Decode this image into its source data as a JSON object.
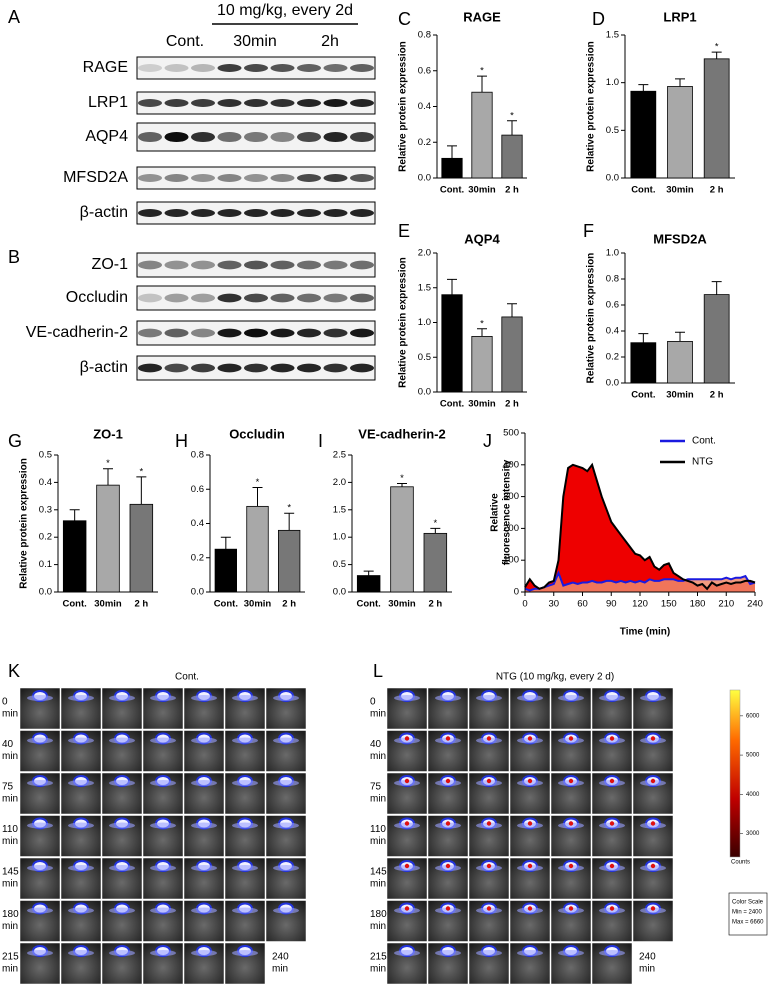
{
  "western_blot": {
    "panel_a": {
      "letter": "A",
      "treatment": "10 mg/kg, every 2d",
      "groups": [
        "Cont.",
        "30min",
        "2h"
      ],
      "proteins": [
        "RAGE",
        "LRP1",
        "AQP4",
        "MFSD2A",
        "β-actin"
      ]
    },
    "panel_b": {
      "letter": "B",
      "proteins": [
        "ZO-1",
        "Occludin",
        "VE-cadherin-2",
        "β-actin"
      ]
    }
  },
  "chart_data": [
    {
      "type": "bar",
      "letter": "C",
      "title": "RAGE",
      "ylabel": "Relative protein expression",
      "categories": [
        "Cont.",
        "30min",
        "2 h"
      ],
      "values": [
        0.11,
        0.48,
        0.24
      ],
      "errors": [
        0.07,
        0.09,
        0.08
      ],
      "significance": [
        null,
        "*",
        "*"
      ],
      "colors": [
        "#000000",
        "#a8a8a8",
        "#777777"
      ],
      "ylim": [
        0,
        0.8
      ],
      "yticks": [
        {
          "value": 0,
          "label": "0.0"
        },
        0.2,
        0.4,
        0.6,
        0.8
      ]
    },
    {
      "type": "bar",
      "letter": "D",
      "title": "LRP1",
      "ylabel": "Relative protein expression",
      "categories": [
        "Cont.",
        "30min",
        "2 h"
      ],
      "values": [
        0.91,
        0.96,
        1.25
      ],
      "errors": [
        0.07,
        0.08,
        0.07
      ],
      "significance": [
        null,
        null,
        "*"
      ],
      "colors": [
        "#000000",
        "#a8a8a8",
        "#777777"
      ],
      "ylim": [
        0,
        1.5
      ],
      "yticks": [
        {
          "value": 0,
          "label": "0.0"
        },
        0.5,
        {
          "value": 1,
          "label": "1.0"
        },
        1.5
      ]
    },
    {
      "type": "bar",
      "letter": "E",
      "title": "AQP4",
      "ylabel": "Relative protein expression",
      "categories": [
        "Cont.",
        "30min",
        "2 h"
      ],
      "values": [
        1.4,
        0.8,
        1.08
      ],
      "errors": [
        0.22,
        0.11,
        0.19
      ],
      "significance": [
        null,
        "*",
        null
      ],
      "colors": [
        "#000000",
        "#a8a8a8",
        "#777777"
      ],
      "ylim": [
        0,
        2
      ],
      "yticks": [
        {
          "value": 0,
          "label": "0.0"
        },
        0.5,
        {
          "value": 1,
          "label": "1.0"
        },
        1.5,
        {
          "value": 2,
          "label": "2.0"
        }
      ]
    },
    {
      "type": "bar",
      "letter": "F",
      "title": "MFSD2A",
      "ylabel": "Relative protein expression",
      "categories": [
        "Cont.",
        "30min",
        "2 h"
      ],
      "values": [
        0.31,
        0.32,
        0.68
      ],
      "errors": [
        0.07,
        0.07,
        0.1
      ],
      "significance": [
        null,
        null,
        null
      ],
      "colors": [
        "#000000",
        "#a8a8a8",
        "#777777"
      ],
      "ylim": [
        0,
        1
      ],
      "yticks": [
        {
          "value": 0,
          "label": "0.0"
        },
        0.2,
        0.4,
        0.6,
        0.8,
        {
          "value": 1,
          "label": "1.0"
        }
      ]
    },
    {
      "type": "bar",
      "letter": "G",
      "title": "ZO-1",
      "ylabel": "Relative protein expression",
      "categories": [
        "Cont.",
        "30min",
        "2 h"
      ],
      "values": [
        0.26,
        0.39,
        0.32
      ],
      "errors": [
        0.04,
        0.06,
        0.1
      ],
      "significance": [
        null,
        "*",
        "*"
      ],
      "colors": [
        "#000000",
        "#a8a8a8",
        "#777777"
      ],
      "ylim": [
        0,
        0.5
      ],
      "yticks": [
        {
          "value": 0,
          "label": "0.0"
        },
        0.1,
        0.2,
        0.3,
        0.4,
        0.5
      ]
    },
    {
      "type": "bar",
      "letter": "H",
      "title": "Occludin",
      "categories": [
        "Cont.",
        "30min",
        "2 h"
      ],
      "values": [
        0.25,
        0.5,
        0.36
      ],
      "errors": [
        0.07,
        0.11,
        0.1
      ],
      "significance": [
        null,
        "*",
        "*"
      ],
      "colors": [
        "#000000",
        "#a8a8a8",
        "#777777"
      ],
      "ylim": [
        0,
        0.8
      ],
      "yticks": [
        {
          "value": 0,
          "label": "0.0"
        },
        0.2,
        0.4,
        0.6,
        0.8
      ]
    },
    {
      "type": "bar",
      "letter": "I",
      "title": "VE-cadherin-2",
      "categories": [
        "Cont.",
        "30min",
        "2 h"
      ],
      "values": [
        0.3,
        1.92,
        1.07
      ],
      "errors": [
        0.08,
        0.06,
        0.09
      ],
      "significance": [
        null,
        "*",
        "*"
      ],
      "colors": [
        "#000000",
        "#a8a8a8",
        "#777777"
      ],
      "ylim": [
        0,
        2.5
      ],
      "yticks": [
        {
          "value": 0,
          "label": "0.0"
        },
        0.5,
        {
          "value": 1,
          "label": "1.0"
        },
        1.5,
        {
          "value": 2,
          "label": "2.0"
        },
        2.5
      ]
    },
    {
      "type": "line",
      "letter": "J",
      "xlabel": "Time (min)",
      "ylabel": [
        "Relative",
        "fluorescence intensity"
      ],
      "x": [
        0,
        5,
        10,
        15,
        20,
        25,
        30,
        35,
        40,
        45,
        50,
        55,
        60,
        65,
        70,
        75,
        80,
        85,
        90,
        95,
        100,
        105,
        110,
        115,
        120,
        125,
        130,
        135,
        140,
        145,
        150,
        155,
        160,
        165,
        170,
        175,
        180,
        185,
        190,
        195,
        200,
        205,
        210,
        215,
        220,
        225,
        230,
        235,
        240
      ],
      "series": [
        {
          "name": "Cont.",
          "color": "#1a1adf",
          "fill": "#f08a6a",
          "values": [
            10,
            5,
            10,
            10,
            15,
            20,
            25,
            60,
            20,
            25,
            30,
            25,
            30,
            30,
            35,
            30,
            30,
            35,
            35,
            30,
            35,
            30,
            35,
            30,
            35,
            30,
            40,
            35,
            35,
            40,
            40,
            40,
            35,
            35,
            40,
            40,
            40,
            40,
            40,
            40,
            40,
            40,
            45,
            40,
            45,
            45,
            50,
            25,
            30
          ]
        },
        {
          "name": "NTG",
          "color": "#000000",
          "fill": "#ee0000",
          "values": [
            15,
            40,
            20,
            10,
            15,
            30,
            35,
            100,
            300,
            390,
            400,
            395,
            390,
            380,
            400,
            350,
            300,
            260,
            220,
            200,
            180,
            160,
            140,
            120,
            115,
            100,
            110,
            80,
            70,
            85,
            90,
            60,
            50,
            40,
            35,
            30,
            20,
            25,
            10,
            30,
            20,
            25,
            30,
            25,
            30,
            30,
            35,
            35,
            30
          ]
        }
      ],
      "xlim": [
        0,
        240
      ],
      "xticks": [
        0,
        30,
        60,
        90,
        120,
        150,
        180,
        210,
        240
      ],
      "ylim": [
        0,
        500
      ],
      "yticks": [
        0,
        100,
        200,
        300,
        400,
        500
      ],
      "legend": "top-right"
    }
  ],
  "imaging": [
    {
      "letter": "K",
      "title": "Cont.",
      "times": [
        0,
        40,
        75,
        110,
        145,
        180,
        215,
        240
      ],
      "unit": "min"
    },
    {
      "letter": "L",
      "title": "NTG (10 mg/kg, every 2 d)",
      "times": [
        0,
        40,
        75,
        110,
        145,
        180,
        215,
        240
      ],
      "unit": "min",
      "colorbar": {
        "lim": [
          2400,
          6660
        ],
        "ticks": [
          3000,
          4000,
          5000,
          6000
        ],
        "label": "Counts",
        "scale_title": "Color Scale",
        "min_label": "Min = 2400",
        "max_label": "Max = 6660"
      }
    }
  ]
}
